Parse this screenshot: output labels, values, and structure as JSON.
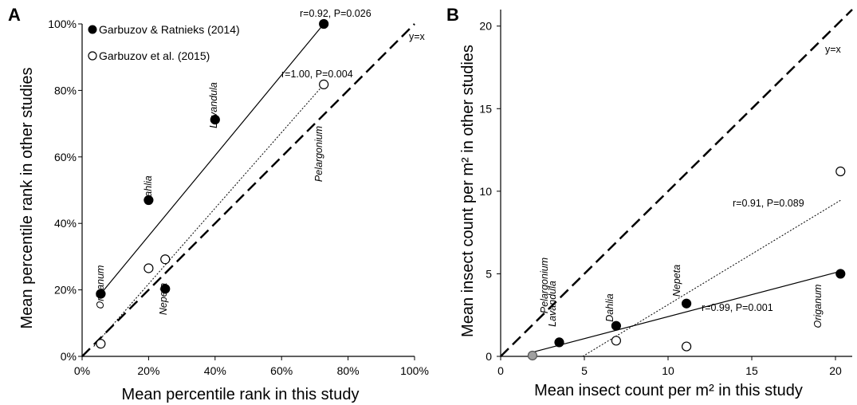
{
  "chart_data": [
    {
      "panel": "A",
      "type": "scatter",
      "xlabel": "Mean percentile rank in this study",
      "ylabel": "Mean percentile rank in other studies",
      "xlim": [
        0,
        100
      ],
      "ylim": [
        0,
        100
      ],
      "unit_suffix": "%",
      "xticks": [
        0,
        20,
        40,
        60,
        80,
        100
      ],
      "yticks": [
        0,
        20,
        40,
        60,
        80,
        100
      ],
      "xtick_labels": [
        "0%",
        "20%",
        "40%",
        "60%",
        "80%",
        "100%"
      ],
      "ytick_labels": [
        "0%",
        "20%",
        "40%",
        "60%",
        "80%",
        "100%"
      ],
      "series": [
        {
          "name": "Garbuzov & Ratnieks (2014)",
          "marker": "filled",
          "points": [
            {
              "x": 5.6,
              "y": 18.8,
              "label": "Origanum"
            },
            {
              "x": 20,
              "y": 47,
              "label": "Dahlia"
            },
            {
              "x": 40,
              "y": 71.2,
              "label": "Lavandula"
            },
            {
              "x": 25,
              "y": 20.3,
              "label": "Nepeta"
            },
            {
              "x": 72.7,
              "y": 100,
              "label": ""
            }
          ],
          "fit": {
            "x1": 5.6,
            "y1": 18.8,
            "x2": 72.7,
            "y2": 100,
            "style": "solid",
            "annotation": "r=0.92, P=0.026"
          }
        },
        {
          "name": "Garbuzov et al. (2015)",
          "marker": "open",
          "points": [
            {
              "x": 5.6,
              "y": 3.8,
              "label": ""
            },
            {
              "x": 20,
              "y": 26.5,
              "label": ""
            },
            {
              "x": 25,
              "y": 29.2,
              "label": ""
            },
            {
              "x": 72.7,
              "y": 81.8,
              "label": "Pelargonium"
            }
          ],
          "fit": {
            "x1": 3.5,
            "y1": 3.0,
            "x2": 72.7,
            "y2": 81.8,
            "style": "dotted",
            "annotation": "r=1.00, P=0.004"
          }
        }
      ],
      "reference_line": {
        "label": "y=x",
        "style": "dashed",
        "x1": 0,
        "y1": 0,
        "x2": 100,
        "y2": 100
      },
      "legend": [
        "Garbuzov & Ratnieks (2014)",
        "Garbuzov et al. (2015)"
      ],
      "legend_position": "top-left"
    },
    {
      "panel": "B",
      "type": "scatter",
      "xlabel": "Mean insect count per m² in this study",
      "ylabel": "Mean insect count per m² in other studies",
      "xlim": [
        0,
        21
      ],
      "ylim": [
        0,
        21
      ],
      "xticks": [
        0,
        5,
        10,
        15,
        20
      ],
      "yticks": [
        0,
        5,
        10,
        15,
        20
      ],
      "xtick_labels": [
        "0",
        "5",
        "10",
        "15",
        "20"
      ],
      "ytick_labels": [
        "0",
        "5",
        "10",
        "15",
        "20"
      ],
      "series": [
        {
          "name": "Garbuzov & Ratnieks (2014)",
          "marker": "filled",
          "points": [
            {
              "x": 3.5,
              "y": 0.85
            },
            {
              "x": 6.9,
              "y": 1.85
            },
            {
              "x": 11.1,
              "y": 3.2
            },
            {
              "x": 20.3,
              "y": 5.0
            }
          ],
          "fit": {
            "x1": 1.9,
            "y1": 0.25,
            "x2": 20.3,
            "y2": 5.15,
            "style": "solid",
            "annotation": "r=0.99, P=0.001"
          }
        },
        {
          "name": "Garbuzov et al. (2015)",
          "marker": "open",
          "points": [
            {
              "x": 6.9,
              "y": 0.95
            },
            {
              "x": 11.1,
              "y": 0.6
            },
            {
              "x": 20.3,
              "y": 11.2
            }
          ],
          "fit": {
            "x1": 4.9,
            "y1": 0,
            "x2": 20.3,
            "y2": 9.45,
            "style": "dotted",
            "annotation": "r=0.91, P=0.089"
          }
        },
        {
          "name": "",
          "marker": "gray",
          "points": [
            {
              "x": 1.9,
              "y": 0.05
            }
          ]
        }
      ],
      "reference_line": {
        "label": "y=x",
        "style": "dashed",
        "x1": 0,
        "y1": 0,
        "x2": 21,
        "y2": 21
      },
      "plant_labels": [
        "Pelargonium",
        "Lavandula",
        "Dahlia",
        "Nepeta",
        "Origanum"
      ]
    }
  ]
}
